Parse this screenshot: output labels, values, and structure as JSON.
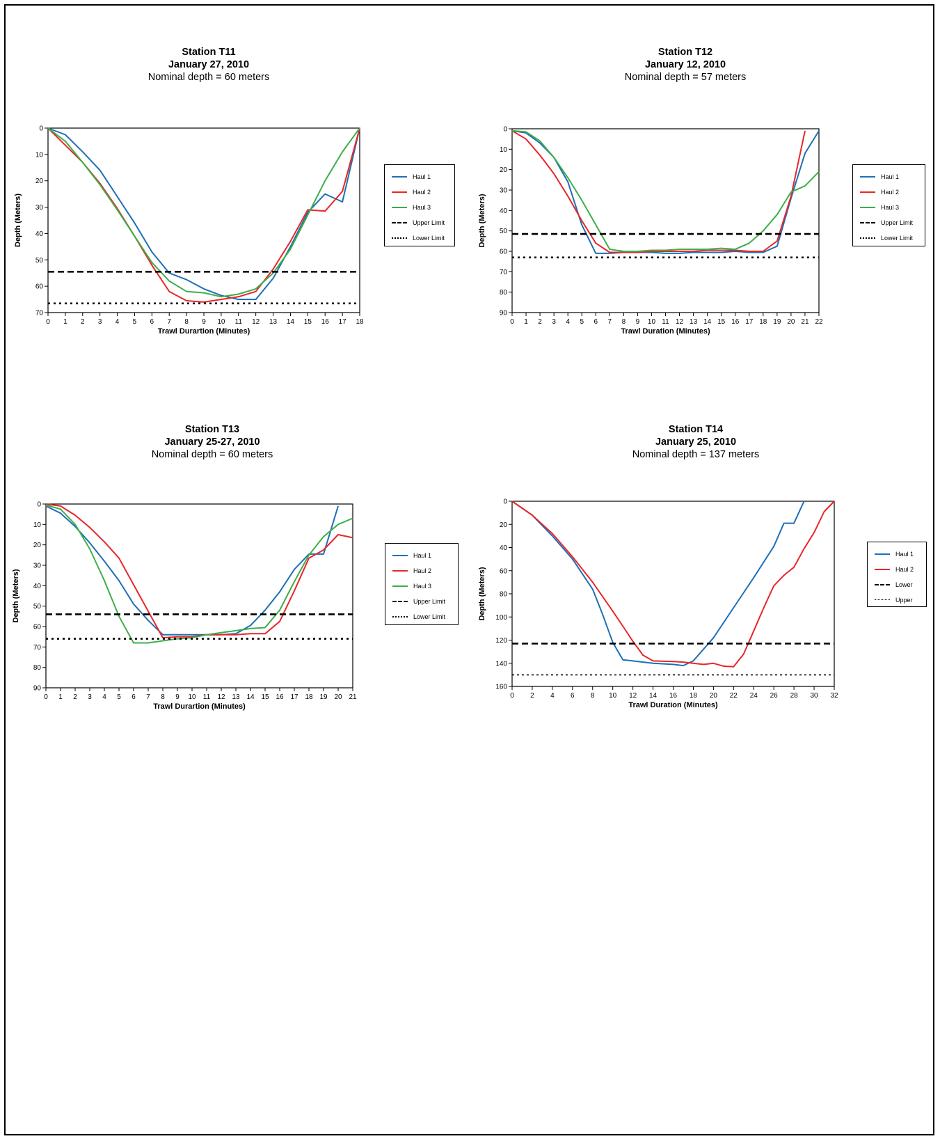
{
  "chart_data": [
    {
      "type": "line",
      "title": "Station T11",
      "date": "January 27, 2010",
      "subtitle": "Nominal depth = 60 meters",
      "xlabel": "Trawl Durartion (Minutes)",
      "ylabel": "Depth (Meters)",
      "xlim": [
        0,
        18
      ],
      "ylim": [
        0,
        70
      ],
      "y_inverted": true,
      "xticks": [
        0,
        1,
        2,
        3,
        4,
        5,
        6,
        7,
        8,
        9,
        10,
        11,
        12,
        13,
        14,
        15,
        16,
        17,
        18
      ],
      "yticks": [
        0,
        10,
        20,
        30,
        40,
        50,
        60,
        70
      ],
      "legend_position": "right",
      "series": [
        {
          "name": "Haul 1",
          "color": "#1f6fb5",
          "style": "solid",
          "x": [
            0,
            1,
            2,
            3,
            4,
            5,
            6,
            7,
            8,
            9,
            10,
            11,
            12,
            13,
            14,
            15,
            16,
            17,
            18
          ],
          "y": [
            0,
            2.5,
            9,
            16,
            26,
            36,
            47,
            55,
            57.5,
            61,
            63.5,
            65,
            65,
            57,
            45,
            32,
            25,
            28,
            0
          ]
        },
        {
          "name": "Haul 2",
          "color": "#e8262a",
          "style": "solid",
          "x": [
            0,
            1,
            2,
            3,
            4,
            5,
            6,
            7,
            8,
            9,
            10,
            11,
            12,
            13,
            14,
            15,
            16,
            17,
            18
          ],
          "y": [
            0,
            6.5,
            13,
            21,
            30.5,
            41,
            52,
            62,
            65.5,
            66,
            65,
            64,
            62,
            53.5,
            43,
            31,
            31.5,
            24,
            0
          ]
        },
        {
          "name": "Haul 3",
          "color": "#3dae49",
          "style": "solid",
          "x": [
            0,
            1,
            2,
            3,
            4,
            5,
            6,
            7,
            8,
            9,
            10,
            11,
            12,
            13,
            14,
            15,
            16,
            17,
            18
          ],
          "y": [
            0,
            5,
            13,
            21.5,
            31,
            41,
            51,
            58,
            62,
            62.5,
            64,
            63,
            61,
            55,
            46,
            33,
            20,
            9,
            0
          ]
        },
        {
          "name": "Upper Limit",
          "color": "#000000",
          "style": "dashed",
          "x": [
            0,
            18
          ],
          "y": [
            54.5,
            54.5
          ]
        },
        {
          "name": "Lower Limit",
          "color": "#000000",
          "style": "dotted",
          "x": [
            0,
            18
          ],
          "y": [
            66.5,
            66.5
          ]
        }
      ]
    },
    {
      "type": "line",
      "title": "Station T12",
      "date": "January 12, 2010",
      "subtitle": "Nominal depth = 57 meters",
      "xlabel": "Trawl Duration (Minutes)",
      "ylabel": "Depth (Meters)",
      "xlim": [
        0,
        22
      ],
      "ylim": [
        0,
        90
      ],
      "y_inverted": true,
      "xticks": [
        0,
        1,
        2,
        3,
        4,
        5,
        6,
        7,
        8,
        9,
        10,
        11,
        12,
        13,
        14,
        15,
        16,
        17,
        18,
        19,
        20,
        21,
        22
      ],
      "yticks": [
        0,
        10,
        20,
        30,
        40,
        50,
        60,
        70,
        80,
        90
      ],
      "legend_position": "right",
      "series": [
        {
          "name": "Haul 1",
          "color": "#1f6fb5",
          "style": "solid",
          "x": [
            0,
            1,
            2,
            3,
            4,
            5,
            6,
            7,
            8,
            9,
            10,
            11,
            12,
            13,
            14,
            15,
            16,
            17,
            18,
            19,
            20,
            21,
            22
          ],
          "y": [
            1,
            2,
            7,
            14,
            26,
            47,
            61,
            61,
            60.5,
            60.5,
            60.5,
            61,
            61,
            60.5,
            60.5,
            60.5,
            60,
            60.5,
            60.5,
            57.5,
            34,
            12,
            1
          ]
        },
        {
          "name": "Haul 2",
          "color": "#e8262a",
          "style": "solid",
          "x": [
            0,
            1,
            2,
            3,
            4,
            5,
            6,
            7,
            8,
            9,
            10,
            11,
            12,
            13,
            14,
            15,
            16,
            17,
            18,
            19,
            20,
            21
          ],
          "y": [
            1,
            5,
            13,
            22,
            33,
            45,
            56,
            60.5,
            60.5,
            60.5,
            60,
            60,
            60,
            60,
            59.5,
            59.5,
            59.5,
            60,
            60,
            55,
            33,
            1
          ]
        },
        {
          "name": "Haul 3",
          "color": "#3dae49",
          "style": "solid",
          "x": [
            0,
            1,
            2,
            3,
            4,
            5,
            6,
            7,
            8,
            9,
            10,
            11,
            12,
            13,
            14,
            15,
            16,
            17,
            18,
            19,
            20,
            21,
            22
          ],
          "y": [
            1,
            1.5,
            6,
            14,
            24,
            35,
            47,
            59,
            60,
            60,
            59.5,
            59.5,
            59,
            59,
            59,
            58.5,
            59,
            56,
            50,
            42,
            31,
            28,
            21
          ]
        },
        {
          "name": "Upper Limit",
          "color": "#000000",
          "style": "dashed",
          "x": [
            0,
            22
          ],
          "y": [
            51.5,
            51.5
          ]
        },
        {
          "name": "Lower Limit",
          "color": "#000000",
          "style": "dotted",
          "x": [
            0,
            22
          ],
          "y": [
            63,
            63
          ]
        }
      ]
    },
    {
      "type": "line",
      "title": "Station T13",
      "date": "January 25-27, 2010",
      "subtitle": "Nominal depth = 60 meters",
      "xlabel": "Trawl Durartion (Minutes)",
      "ylabel": "Depth (Meters)",
      "xlim": [
        0,
        21
      ],
      "ylim": [
        0,
        90
      ],
      "y_inverted": true,
      "xticks": [
        0,
        1,
        2,
        3,
        4,
        5,
        6,
        7,
        8,
        9,
        10,
        11,
        12,
        13,
        14,
        15,
        16,
        17,
        18,
        19,
        20,
        21
      ],
      "yticks": [
        0,
        10,
        20,
        30,
        40,
        50,
        60,
        70,
        80,
        90
      ],
      "legend_position": "right",
      "series": [
        {
          "name": "Haul 1",
          "color": "#1f6fb5",
          "style": "solid",
          "x": [
            0,
            1,
            2,
            3,
            4,
            5,
            6,
            7,
            8,
            9,
            10,
            11,
            12,
            13,
            14,
            15,
            16,
            17,
            18,
            19,
            20
          ],
          "y": [
            1,
            4.5,
            11,
            19,
            28,
            37.5,
            49,
            57,
            64,
            64,
            64,
            64,
            64,
            63.5,
            59.5,
            52,
            43,
            32,
            24.5,
            24.5,
            1
          ]
        },
        {
          "name": "Haul 2",
          "color": "#e8262a",
          "style": "solid",
          "x": [
            0,
            1,
            2,
            3,
            4,
            5,
            6,
            7,
            8,
            9,
            10,
            11,
            12,
            13,
            14,
            15,
            16,
            17,
            18,
            19,
            20,
            21
          ],
          "y": [
            0,
            1,
            5.5,
            11.5,
            18.5,
            26.5,
            39.5,
            52.5,
            65.5,
            65,
            65,
            64,
            64,
            64,
            63.5,
            63.5,
            57.5,
            42.5,
            26.5,
            22.5,
            15,
            16.5
          ]
        },
        {
          "name": "Haul 3",
          "color": "#3dae49",
          "style": "solid",
          "x": [
            0,
            1,
            2,
            3,
            4,
            5,
            6,
            7,
            8,
            9,
            10,
            11,
            12,
            13,
            14,
            15,
            16,
            17,
            18,
            19,
            20,
            21
          ],
          "y": [
            0.5,
            2.5,
            10,
            22,
            37.5,
            55,
            68,
            68,
            67,
            66,
            65.5,
            64,
            63,
            62,
            61,
            60.5,
            52,
            38,
            25,
            16,
            10,
            7
          ]
        },
        {
          "name": "Upper Limit",
          "color": "#000000",
          "style": "dashed",
          "x": [
            0,
            21
          ],
          "y": [
            54,
            54
          ]
        },
        {
          "name": "Lower Limit",
          "color": "#000000",
          "style": "dotted",
          "x": [
            0,
            21
          ],
          "y": [
            66,
            66
          ]
        }
      ]
    },
    {
      "type": "line",
      "title": "Station T14",
      "date": "January 25, 2010",
      "subtitle": "Nominal depth = 137 meters",
      "xlabel": "Trawl Duration (Minutes)",
      "ylabel": "Depth (Meters)",
      "xlim": [
        0,
        32
      ],
      "ylim": [
        0,
        160
      ],
      "y_inverted": true,
      "xticks": [
        0,
        2,
        4,
        6,
        8,
        10,
        12,
        14,
        16,
        18,
        20,
        22,
        24,
        26,
        28,
        30,
        32
      ],
      "yticks": [
        0,
        20,
        40,
        60,
        80,
        100,
        120,
        140,
        160
      ],
      "legend_position": "right",
      "series": [
        {
          "name": "Haul 1",
          "color": "#1f6fb5",
          "style": "solid",
          "x": [
            0,
            2,
            4,
            6,
            8,
            9,
            10,
            11,
            12,
            14,
            16,
            17,
            18,
            20,
            22,
            24,
            26,
            27,
            28,
            29
          ],
          "y": [
            0,
            12,
            30,
            50,
            76,
            98,
            122,
            137,
            138,
            140,
            141,
            142,
            138,
            118,
            92,
            66,
            39,
            19,
            19,
            0
          ]
        },
        {
          "name": "Haul 2",
          "color": "#e8262a",
          "style": "solid",
          "x": [
            0,
            2,
            4,
            6,
            8,
            10,
            11,
            12,
            13,
            14,
            16,
            17,
            18,
            19,
            20,
            21,
            22,
            23,
            24,
            25,
            26,
            27,
            28,
            29,
            30,
            31,
            32
          ],
          "y": [
            0,
            12,
            28,
            48,
            70,
            95,
            108,
            121,
            133,
            138,
            138.5,
            139,
            140,
            141,
            140,
            142.5,
            143,
            132,
            112,
            92,
            73,
            64,
            57,
            41,
            27,
            9,
            0
          ]
        },
        {
          "name": "Lower",
          "color": "#000000",
          "style": "dashed",
          "x": [
            0,
            32
          ],
          "y": [
            123,
            123
          ]
        },
        {
          "name": "Upper",
          "color": "#000000",
          "style": "dotted-fine",
          "x": [
            0,
            32
          ],
          "y": [
            150,
            150
          ]
        }
      ]
    }
  ]
}
